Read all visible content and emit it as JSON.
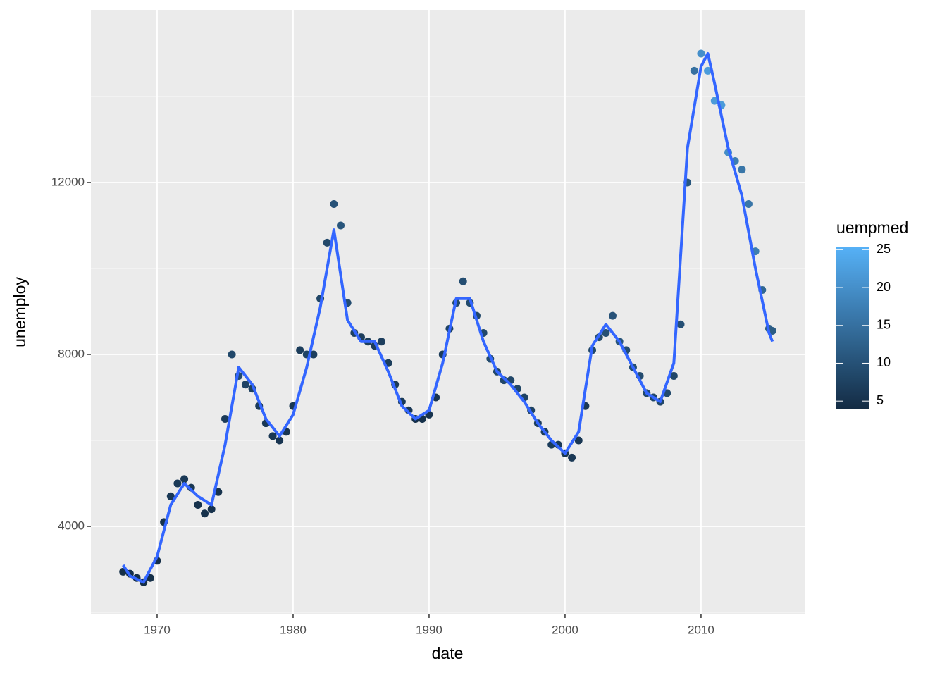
{
  "chart_data": {
    "type": "scatter",
    "x_label": "date",
    "y_label": "unemploy",
    "x": [
      1967.5,
      1968.0,
      1968.5,
      1969.0,
      1969.5,
      1970.0,
      1970.5,
      1971.0,
      1971.5,
      1972.0,
      1972.5,
      1973.0,
      1973.5,
      1974.0,
      1974.5,
      1975.0,
      1975.5,
      1976.0,
      1976.5,
      1977.0,
      1977.5,
      1978.0,
      1978.5,
      1979.0,
      1979.5,
      1980.0,
      1980.5,
      1981.0,
      1981.5,
      1982.0,
      1982.5,
      1983.0,
      1983.5,
      1984.0,
      1984.5,
      1985.0,
      1985.5,
      1986.0,
      1986.5,
      1987.0,
      1987.5,
      1988.0,
      1988.5,
      1989.0,
      1989.5,
      1990.0,
      1990.5,
      1991.0,
      1991.5,
      1992.0,
      1992.5,
      1993.0,
      1993.5,
      1994.0,
      1994.5,
      1995.0,
      1995.5,
      1996.0,
      1996.5,
      1997.0,
      1997.5,
      1998.0,
      1998.5,
      1999.0,
      1999.5,
      2000.0,
      2000.5,
      2001.0,
      2001.5,
      2002.0,
      2002.5,
      2003.0,
      2003.5,
      2004.0,
      2004.5,
      2005.0,
      2005.5,
      2006.0,
      2006.5,
      2007.0,
      2007.5,
      2008.0,
      2008.5,
      2009.0,
      2009.5,
      2010.0,
      2010.5,
      2011.0,
      2011.5,
      2012.0,
      2012.5,
      2013.0,
      2013.5,
      2014.0,
      2014.5,
      2015.0,
      2015.25
    ],
    "values": [
      2945,
      2900,
      2800,
      2700,
      2800,
      3200,
      4100,
      4700,
      5000,
      5100,
      4900,
      4500,
      4300,
      4400,
      4800,
      6500,
      8000,
      7500,
      7300,
      7200,
      6800,
      6400,
      6100,
      6000,
      6200,
      6800,
      8100,
      8000,
      8000,
      9300,
      10600,
      11500,
      11000,
      9200,
      8500,
      8400,
      8300,
      8200,
      8300,
      7800,
      7300,
      6900,
      6700,
      6500,
      6500,
      6600,
      7000,
      8000,
      8600,
      9200,
      9700,
      9200,
      8900,
      8500,
      7900,
      7600,
      7400,
      7400,
      7200,
      7000,
      6700,
      6400,
      6200,
      5900,
      5900,
      5700,
      5600,
      6000,
      6800,
      8100,
      8400,
      8500,
      8900,
      8300,
      8100,
      7700,
      7500,
      7100,
      7000,
      6900,
      7100,
      7500,
      8700,
      12000,
      14600,
      15000,
      14600,
      13900,
      13800,
      12700,
      12500,
      12300,
      11500,
      10400,
      9500,
      8600,
      8550
    ],
    "color_values": [
      4.5,
      4.7,
      4.5,
      4.4,
      4.5,
      4.6,
      5.0,
      6.0,
      6.2,
      6.2,
      5.8,
      5.0,
      4.8,
      4.8,
      5.0,
      6.5,
      8.5,
      8.8,
      7.8,
      7.2,
      6.5,
      6.0,
      5.8,
      5.4,
      5.4,
      5.8,
      6.8,
      7.8,
      7.0,
      8.0,
      8.6,
      10.2,
      10.6,
      9.4,
      7.5,
      7.0,
      6.9,
      6.8,
      7.0,
      6.9,
      6.4,
      6.3,
      5.9,
      4.8,
      4.8,
      5.2,
      5.4,
      6.4,
      7.6,
      8.5,
      9.4,
      8.8,
      8.4,
      8.6,
      9.0,
      8.2,
      8.3,
      8.3,
      8.0,
      7.8,
      7.6,
      7.0,
      6.6,
      6.6,
      6.3,
      5.8,
      6.0,
      5.9,
      6.2,
      8.4,
      9.0,
      9.6,
      10.2,
      10.6,
      9.2,
      9.4,
      9.0,
      8.6,
      8.2,
      8.3,
      8.9,
      8.4,
      9.7,
      11.0,
      15.0,
      20.0,
      22.0,
      21.8,
      21.8,
      19.7,
      17.0,
      16.0,
      16.0,
      17.0,
      13.3,
      12.3,
      11.7
    ],
    "color_name": "uempmed",
    "color_range": [
      "#132B43",
      "#56B1F7"
    ],
    "color_lim": [
      3.9,
      25.4
    ],
    "color_ticks": [
      5,
      10,
      15,
      20,
      25
    ],
    "xlim": [
      1965.13,
      2017.62
    ],
    "ylim": [
      1951,
      16016
    ],
    "xticks": [
      1970,
      1980,
      1990,
      2000,
      2010
    ],
    "yticks": [
      4000,
      8000,
      12000
    ],
    "x_minor_ticks": [
      1975,
      1985,
      1995,
      2005,
      2015
    ],
    "y_minor_ticks": [
      2000,
      6000,
      10000,
      14000
    ],
    "grid": true,
    "smooth": {
      "color": "#3366FF",
      "x": [
        1967.5,
        1968,
        1969,
        1970,
        1971,
        1972,
        1973,
        1974,
        1975,
        1976,
        1977,
        1978,
        1979,
        1980,
        1981,
        1982,
        1983,
        1984,
        1985,
        1986,
        1987,
        1988,
        1989,
        1990,
        1991,
        1992,
        1993,
        1994,
        1995,
        1996,
        1997,
        1998,
        1999,
        2000,
        2001,
        2002,
        2003,
        2004,
        2005,
        2006,
        2007,
        2008,
        2009,
        2010,
        2010.5,
        2011,
        2012,
        2013,
        2014,
        2015,
        2015.25
      ],
      "values": [
        3100,
        2850,
        2700,
        3300,
        4500,
        5000,
        4700,
        4500,
        5900,
        7700,
        7300,
        6500,
        6100,
        6600,
        7700,
        9100,
        10900,
        8800,
        8300,
        8300,
        7600,
        6800,
        6500,
        6700,
        7800,
        9300,
        9300,
        8300,
        7600,
        7300,
        6900,
        6400,
        6000,
        5700,
        6200,
        8200,
        8700,
        8300,
        7700,
        7100,
        6900,
        7800,
        12800,
        14700,
        15000,
        14300,
        12800,
        11700,
        10000,
        8500,
        8300
      ]
    }
  }
}
